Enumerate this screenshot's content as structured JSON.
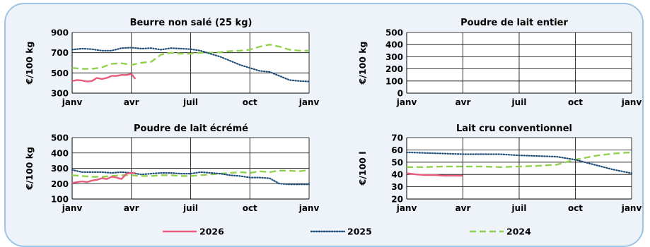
{
  "x_tick_labels": [
    "janv",
    "avr",
    "juil",
    "oct",
    "janv"
  ],
  "series_styles": [
    {
      "name": "2026",
      "color": "#e85c7e",
      "dash": "solid"
    },
    {
      "name": "2025",
      "color": "#1f4e79",
      "dash": "dotted"
    },
    {
      "name": "2024",
      "color": "#92d050",
      "dash": "dashed"
    }
  ],
  "chart_data": [
    {
      "type": "line",
      "title": "Beurre non salé (25 kg)",
      "ylabel": "€/100 kg",
      "ylim": [
        300,
        900
      ],
      "yticks": [
        300,
        500,
        700,
        900
      ],
      "xlim": [
        0,
        12
      ],
      "grid": true,
      "series": [
        {
          "name": "2026",
          "x": [
            0,
            0.25,
            0.5,
            0.75,
            1.0,
            1.25,
            1.5,
            1.75,
            2.0,
            2.25,
            2.5,
            2.75,
            3.0,
            3.2
          ],
          "values": [
            420,
            430,
            425,
            415,
            420,
            450,
            440,
            450,
            470,
            470,
            480,
            480,
            490,
            440
          ]
        },
        {
          "name": "2025",
          "x": [
            0,
            0.5,
            1,
            1.5,
            2,
            2.5,
            3,
            3.5,
            4,
            4.5,
            5,
            5.5,
            6,
            6.5,
            7,
            7.5,
            8,
            8.5,
            9,
            9.5,
            10,
            10.5,
            11,
            11.5,
            12
          ],
          "values": [
            730,
            740,
            735,
            720,
            720,
            745,
            750,
            740,
            745,
            730,
            745,
            740,
            735,
            720,
            690,
            660,
            620,
            580,
            550,
            520,
            510,
            470,
            430,
            420,
            415
          ]
        },
        {
          "name": "2024",
          "x": [
            0,
            0.5,
            1,
            1.5,
            2,
            2.5,
            3,
            3.5,
            4,
            4.5,
            5,
            5.5,
            6,
            6.5,
            7,
            7.5,
            8,
            8.5,
            9,
            9.5,
            10,
            10.5,
            11,
            11.5,
            12
          ],
          "values": [
            550,
            540,
            540,
            555,
            590,
            595,
            580,
            600,
            610,
            680,
            700,
            690,
            690,
            700,
            700,
            705,
            715,
            720,
            730,
            760,
            780,
            760,
            730,
            720,
            720
          ]
        }
      ]
    },
    {
      "type": "line",
      "title": "Poudre de lait entier",
      "ylabel": "€/100 kg",
      "ylim": [
        0,
        500
      ],
      "yticks": [
        0,
        100,
        200,
        300,
        400,
        500
      ],
      "xlim": [
        0,
        12
      ],
      "grid": true,
      "series": []
    },
    {
      "type": "line",
      "title": "Poudre de lait écrémé",
      "ylabel": "€/100 kg",
      "ylim": [
        100,
        500
      ],
      "yticks": [
        100,
        200,
        300,
        400,
        500
      ],
      "xlim": [
        0,
        12
      ],
      "grid": true,
      "series": [
        {
          "name": "2026",
          "x": [
            0,
            0.25,
            0.5,
            0.75,
            1.0,
            1.25,
            1.5,
            1.75,
            2.0,
            2.25,
            2.5,
            2.75,
            3.0,
            3.2
          ],
          "values": [
            205,
            210,
            215,
            210,
            220,
            225,
            235,
            230,
            245,
            240,
            230,
            265,
            270,
            270
          ]
        },
        {
          "name": "2025",
          "x": [
            0,
            0.5,
            1,
            1.5,
            2,
            2.5,
            3,
            3.5,
            4,
            4.5,
            5,
            5.5,
            6,
            6.5,
            7,
            7.5,
            8,
            8.5,
            9,
            9.5,
            10,
            10.5,
            11,
            11.5,
            12
          ],
          "values": [
            290,
            275,
            275,
            275,
            270,
            275,
            270,
            260,
            265,
            270,
            270,
            265,
            265,
            275,
            270,
            265,
            255,
            250,
            240,
            240,
            235,
            200,
            195,
            195,
            195
          ]
        },
        {
          "name": "2024",
          "x": [
            0,
            0.5,
            1,
            1.5,
            2,
            2.5,
            3,
            3.5,
            4,
            4.5,
            5,
            5.5,
            6,
            6.5,
            7,
            7.5,
            8,
            8.5,
            9,
            9.5,
            10,
            10.5,
            11,
            11.5,
            12
          ],
          "values": [
            255,
            250,
            245,
            245,
            250,
            255,
            255,
            250,
            250,
            255,
            255,
            250,
            250,
            255,
            260,
            265,
            270,
            275,
            270,
            280,
            275,
            285,
            285,
            280,
            290
          ]
        }
      ]
    },
    {
      "type": "line",
      "title": "Lait cru conventionnel",
      "ylabel": "€/100 l",
      "ylim": [
        20,
        70
      ],
      "yticks": [
        20,
        30,
        40,
        50,
        60,
        70
      ],
      "xlim": [
        0,
        12
      ],
      "grid": true,
      "series": [
        {
          "name": "2026",
          "x": [
            0,
            0.5,
            1,
            1.5,
            2,
            2.5,
            3
          ],
          "values": [
            41,
            40,
            39.5,
            39.5,
            39,
            39,
            39
          ]
        },
        {
          "name": "2025",
          "x": [
            0,
            1,
            2,
            3,
            4,
            5,
            6,
            7,
            8,
            9,
            10,
            11,
            12
          ],
          "values": [
            58,
            57.5,
            57,
            56.5,
            56.5,
            56.5,
            55.5,
            55,
            54.5,
            52,
            48,
            44,
            41
          ]
        },
        {
          "name": "2024",
          "x": [
            0,
            1,
            2,
            3,
            4,
            5,
            6,
            7,
            8,
            9,
            10,
            11,
            12
          ],
          "values": [
            46,
            46,
            46.5,
            46.5,
            46.5,
            46,
            46.5,
            47,
            48,
            52,
            55,
            57,
            58
          ]
        }
      ]
    }
  ]
}
